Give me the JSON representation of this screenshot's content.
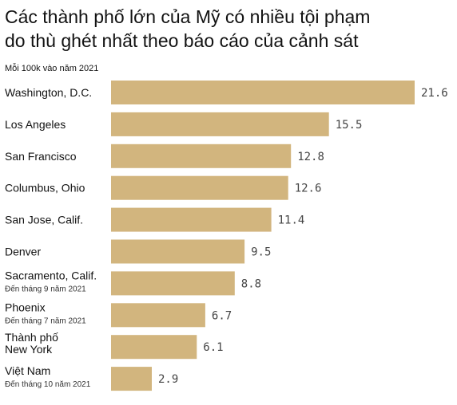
{
  "colors": {
    "bar": "#d2b57e",
    "text": "#121212"
  },
  "chart_data": {
    "type": "bar",
    "orientation": "horizontal",
    "title_lines": [
      "Các thành phố lớn của Mỹ có nhiều tội phạm",
      "do thù ghét nhất theo báo cáo của cảnh sát"
    ],
    "subtitle": "Mỗi 100k vào năm 2021",
    "categories": [
      {
        "label": [
          "Washington, D.C."
        ],
        "note": ""
      },
      {
        "label": [
          "Los Angeles"
        ],
        "note": ""
      },
      {
        "label": [
          "San Francisco"
        ],
        "note": ""
      },
      {
        "label": [
          "Columbus, Ohio"
        ],
        "note": ""
      },
      {
        "label": [
          "San Jose, Calif."
        ],
        "note": ""
      },
      {
        "label": [
          "Denver"
        ],
        "note": ""
      },
      {
        "label": [
          "Sacramento, Calif."
        ],
        "note": "Đến tháng 9 năm 2021"
      },
      {
        "label": [
          "Phoenix"
        ],
        "note": "Đến tháng 7 năm 2021"
      },
      {
        "label": [
          "Thành phố",
          "New York"
        ],
        "note": ""
      },
      {
        "label": [
          "Việt Nam"
        ],
        "note": "Đến tháng 10 năm 2021"
      }
    ],
    "values": [
      21.6,
      15.5,
      12.8,
      12.6,
      11.4,
      9.5,
      8.8,
      6.7,
      6.1,
      2.9
    ],
    "value_labels": [
      "21.6",
      "15.5",
      "12.8",
      "12.6",
      "11.4",
      "9.5",
      "8.8",
      "6.7",
      "6.1",
      "2.9"
    ],
    "xlim": [
      0,
      21.6
    ],
    "grid": false,
    "legend": "none"
  }
}
